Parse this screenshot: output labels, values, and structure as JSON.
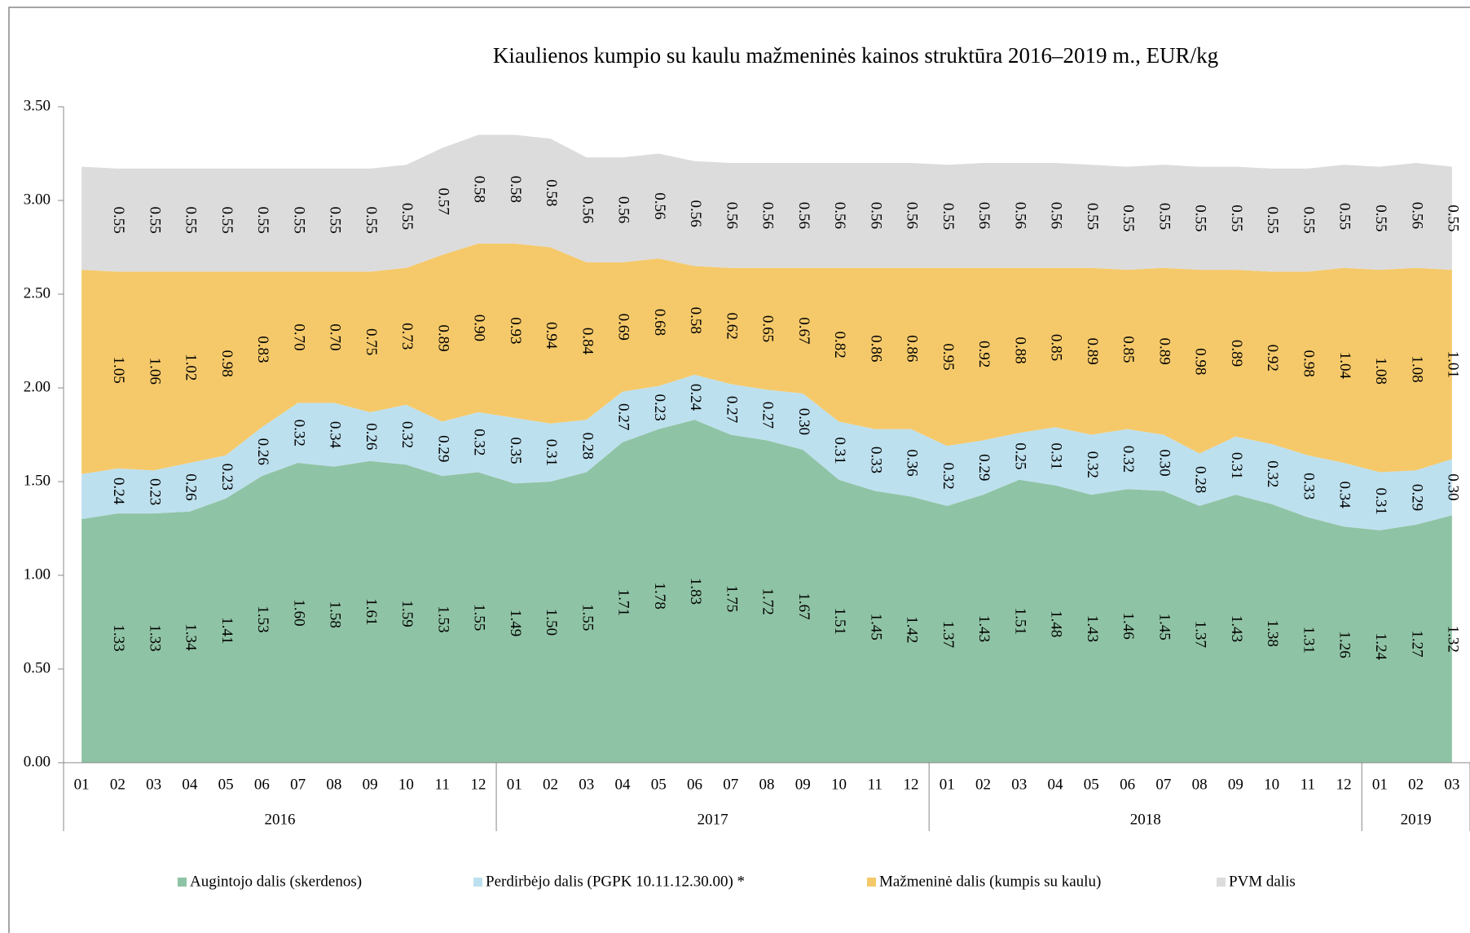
{
  "chart_data": {
    "type": "area",
    "title": "Kiaulienos kumpio su kaulu mažmeninės kainos struktūra 2016–2019 m., EUR/kg",
    "categories": [
      "01",
      "02",
      "03",
      "04",
      "05",
      "06",
      "07",
      "08",
      "09",
      "10",
      "11",
      "12",
      "01",
      "02",
      "03",
      "04",
      "05",
      "06",
      "07",
      "08",
      "09",
      "10",
      "11",
      "12",
      "01",
      "02",
      "03",
      "04",
      "05",
      "06",
      "07",
      "08",
      "09",
      "10",
      "11",
      "12",
      "01",
      "02",
      "03"
    ],
    "years": [
      "2016",
      "2017",
      "2018",
      "2019"
    ],
    "stacked": true,
    "series": [
      {
        "name": "Augintojo dalis (skerdenos)",
        "color": "#8fc3a5",
        "values": [
          1.3,
          1.33,
          1.33,
          1.34,
          1.41,
          1.53,
          1.6,
          1.58,
          1.61,
          1.59,
          1.53,
          1.55,
          1.49,
          1.5,
          1.55,
          1.71,
          1.78,
          1.83,
          1.75,
          1.72,
          1.67,
          1.51,
          1.45,
          1.42,
          1.37,
          1.43,
          1.51,
          1.48,
          1.43,
          1.46,
          1.45,
          1.37,
          1.43,
          1.38,
          1.31,
          1.26,
          1.24,
          1.27,
          1.32
        ],
        "value_labels": [
          null,
          "1.33",
          "1.33",
          "1.34",
          "1.41",
          "1.53",
          "1.60",
          "1.58",
          "1.61",
          "1.59",
          "1.53",
          "1.55",
          "1.49",
          "1.50",
          "1.55",
          "1.71",
          "1.78",
          "1.83",
          "1.75",
          "1.72",
          "1.67",
          "1.51",
          "1.45",
          "1.42",
          "1.37",
          "1.43",
          "1.51",
          "1.48",
          "1.43",
          "1.46",
          "1.45",
          "1.37",
          "1.43",
          "1.38",
          "1.31",
          "1.26",
          "1.24",
          "1.27",
          "1.32"
        ]
      },
      {
        "name": "Perdirbėjo dalis (PGPK 10.11.12.30.00) *",
        "color": "#bde0ee",
        "values": [
          0.24,
          0.24,
          0.23,
          0.26,
          0.23,
          0.26,
          0.32,
          0.34,
          0.26,
          0.32,
          0.29,
          0.32,
          0.35,
          0.31,
          0.28,
          0.27,
          0.23,
          0.24,
          0.27,
          0.27,
          0.3,
          0.31,
          0.33,
          0.36,
          0.32,
          0.29,
          0.25,
          0.31,
          0.32,
          0.32,
          0.3,
          0.28,
          0.31,
          0.32,
          0.33,
          0.34,
          0.31,
          0.29,
          0.3
        ],
        "value_labels": [
          null,
          "0.24",
          "0.23",
          "0.26",
          "0.23",
          "0.26",
          "0.32",
          "0.34",
          "0.26",
          "0.32",
          "0.29",
          "0.32",
          "0.35",
          "0.31",
          "0.28",
          "0.27",
          "0.23",
          "0.24",
          "0.27",
          "0.27",
          "0.30",
          "0.31",
          "0.33",
          "0.36",
          "0.32",
          "0.29",
          "0.25",
          "0.31",
          "0.32",
          "0.32",
          "0.30",
          "0.28",
          "0.31",
          "0.32",
          "0.33",
          "0.34",
          "0.31",
          "0.29",
          "0.30"
        ]
      },
      {
        "name": "Mažmeninė dalis (kumpis su kaulu)",
        "color": "#f5c96a",
        "values": [
          1.09,
          1.05,
          1.06,
          1.02,
          0.98,
          0.83,
          0.7,
          0.7,
          0.75,
          0.73,
          0.89,
          0.9,
          0.93,
          0.94,
          0.84,
          0.69,
          0.68,
          0.58,
          0.62,
          0.65,
          0.67,
          0.82,
          0.86,
          0.86,
          0.95,
          0.92,
          0.88,
          0.85,
          0.89,
          0.85,
          0.89,
          0.98,
          0.89,
          0.92,
          0.98,
          1.04,
          1.08,
          1.08,
          1.01
        ],
        "value_labels": [
          null,
          "1.05",
          "1.06",
          "1.02",
          "0.98",
          "0.83",
          "0.70",
          "0.70",
          "0.75",
          "0.73",
          "0.89",
          "0.90",
          "0.93",
          "0.94",
          "0.84",
          "0.69",
          "0.68",
          "0.58",
          "0.62",
          "0.65",
          "0.67",
          "0.82",
          "0.86",
          "0.86",
          "0.95",
          "0.92",
          "0.88",
          "0.85",
          "0.89",
          "0.85",
          "0.89",
          "0.98",
          "0.89",
          "0.92",
          "0.98",
          "1.04",
          "1.08",
          "1.08",
          "1.01"
        ]
      },
      {
        "name": "PVM dalis",
        "color": "#dcdcdc",
        "values": [
          0.55,
          0.55,
          0.55,
          0.55,
          0.55,
          0.55,
          0.55,
          0.55,
          0.55,
          0.55,
          0.57,
          0.58,
          0.58,
          0.58,
          0.56,
          0.56,
          0.56,
          0.56,
          0.56,
          0.56,
          0.56,
          0.56,
          0.56,
          0.56,
          0.55,
          0.56,
          0.56,
          0.56,
          0.55,
          0.55,
          0.55,
          0.55,
          0.55,
          0.55,
          0.55,
          0.55,
          0.55,
          0.56,
          0.55
        ],
        "value_labels": [
          null,
          "0.55",
          "0.55",
          "0.55",
          "0.55",
          "0.55",
          "0.55",
          "0.55",
          "0.55",
          "0.55",
          "0.57",
          "0.58",
          "0.58",
          "0.58",
          "0.56",
          "0.56",
          "0.56",
          "0.56",
          "0.56",
          "0.56",
          "0.56",
          "0.56",
          "0.56",
          "0.56",
          "0.55",
          "0.56",
          "0.56",
          "0.56",
          "0.55",
          "0.55",
          "0.55",
          "0.55",
          "0.55",
          "0.55",
          "0.55",
          "0.55",
          "0.55",
          "0.56",
          "0.55"
        ]
      }
    ],
    "ylim": [
      0,
      3.5
    ],
    "yticks": [
      {
        "value": 0,
        "label": "0.00"
      },
      {
        "value": 0.5,
        "label": "0.50"
      },
      {
        "value": 1,
        "label": "1.00"
      },
      {
        "value": 1.5,
        "label": "1.50"
      },
      {
        "value": 2,
        "label": "2.00"
      },
      {
        "value": 2.5,
        "label": "2.50"
      },
      {
        "value": 3,
        "label": "3.00"
      },
      {
        "value": 3.5,
        "label": "3.50"
      }
    ],
    "legend": "bottom"
  }
}
